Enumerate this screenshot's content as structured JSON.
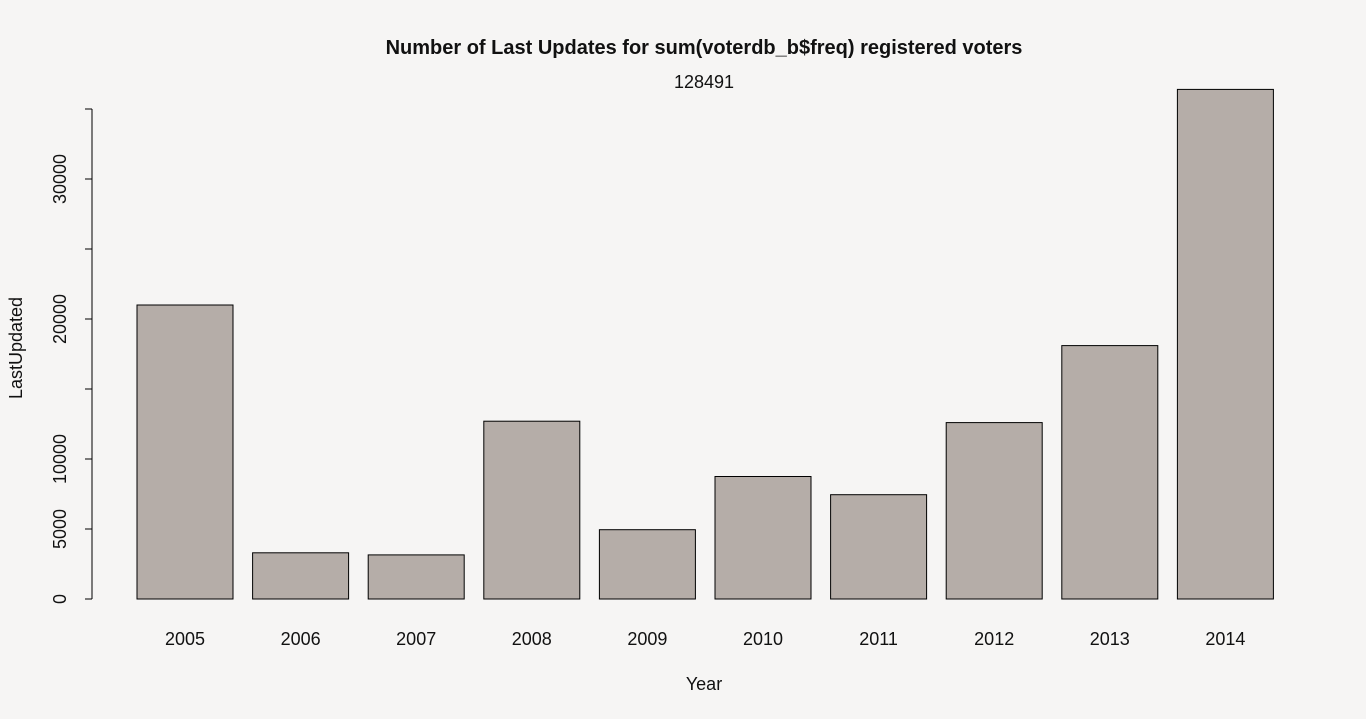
{
  "chart_data": {
    "type": "bar",
    "title": "Number of Last Updates for sum(voterdb_b$freq) registered voters",
    "subtitle": "128491",
    "xlabel": "Year",
    "ylabel": "LastUpdated",
    "categories": [
      "2005",
      "2006",
      "2007",
      "2008",
      "2009",
      "2010",
      "2011",
      "2012",
      "2013",
      "2014"
    ],
    "values": [
      21000,
      3300,
      3150,
      12700,
      4950,
      8750,
      7450,
      12600,
      18100,
      36400
    ],
    "ylim": [
      0,
      35000
    ],
    "yticks": [
      0,
      5000,
      10000,
      15000,
      20000,
      25000,
      30000,
      35000
    ],
    "ytick_labels": [
      "0",
      "5000",
      "10000",
      "",
      "20000",
      "",
      "30000",
      ""
    ],
    "grid": false,
    "legend": "none",
    "colors": {
      "bar_fill": "#b5ada8",
      "bar_stroke": "#000000",
      "background": "#f6f5f4"
    }
  }
}
